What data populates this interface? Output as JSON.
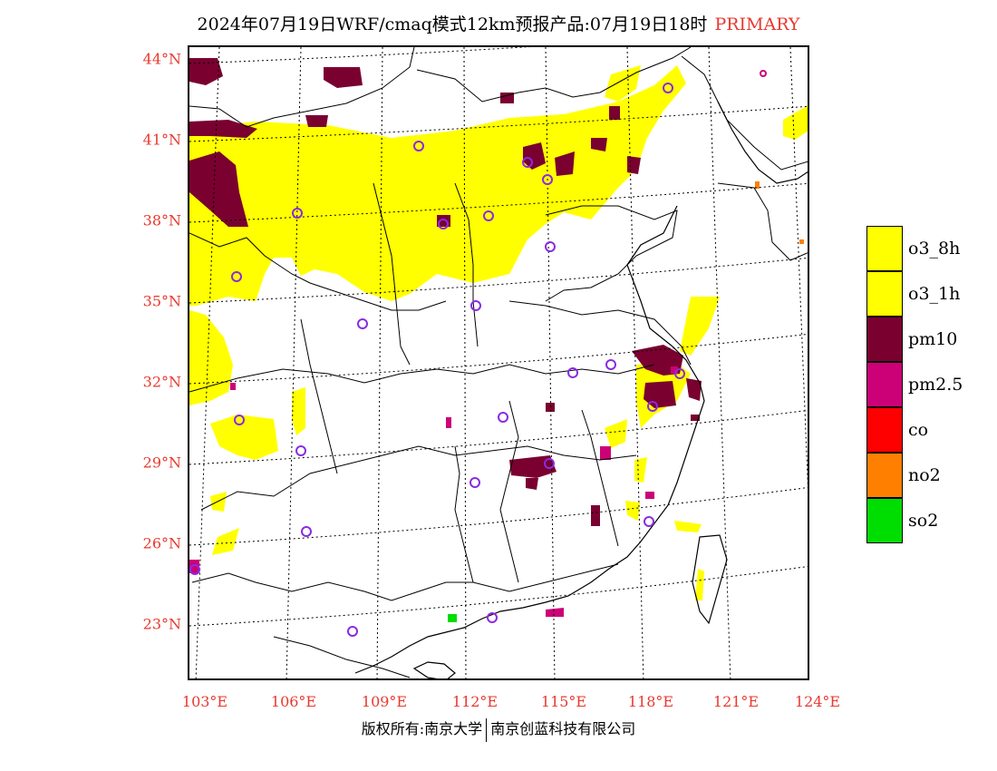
{
  "title": {
    "main": "2024年07月19日WRF/cmaq模式12km预报产品:07月19日18时",
    "tag": "PRIMARY"
  },
  "axes": {
    "lat_labels": [
      "44°N",
      "41°N",
      "38°N",
      "35°N",
      "32°N",
      "29°N",
      "26°N",
      "23°N"
    ],
    "lon_labels": [
      "103°E",
      "106°E",
      "109°E",
      "112°E",
      "115°E",
      "118°E",
      "121°E",
      "124°E"
    ]
  },
  "legend": {
    "items": [
      {
        "label": "o3_8h",
        "color": "#ffff00"
      },
      {
        "label": "o3_1h",
        "color": "#ffff00"
      },
      {
        "label": "pm10",
        "color": "#7a0030"
      },
      {
        "label": "pm2.5",
        "color": "#cc0077"
      },
      {
        "label": "co",
        "color": "#ff0000"
      },
      {
        "label": "no2",
        "color": "#ff8000"
      },
      {
        "label": "so2",
        "color": "#00dd00"
      }
    ]
  },
  "footer": {
    "left": "版权所有:南京大学",
    "right": "南京创蓝科技有限公司"
  },
  "colors": {
    "o3": "#ffff00",
    "pm10": "#7a0030",
    "pm25": "#cc0077",
    "no2": "#ff8000",
    "so2": "#00dd00",
    "stations": "#8a2be2",
    "axis_text": "#e8392f"
  }
}
